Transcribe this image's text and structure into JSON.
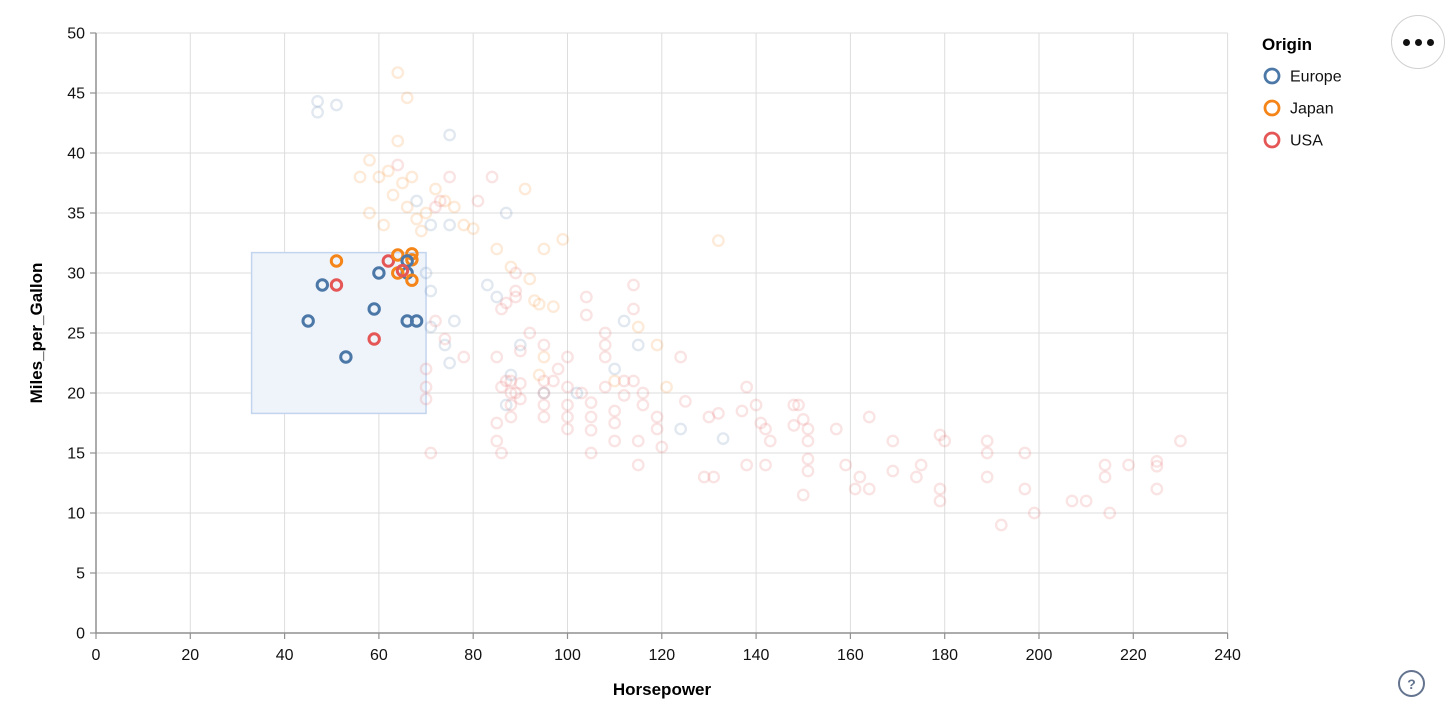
{
  "axes": {
    "x_title": "Horsepower",
    "y_title": "Miles_per_Gallon",
    "x_ticks": [
      0,
      20,
      40,
      60,
      80,
      100,
      120,
      140,
      160,
      180,
      200,
      220,
      240
    ],
    "y_ticks": [
      0,
      5,
      10,
      15,
      20,
      25,
      30,
      35,
      40,
      45,
      50
    ],
    "x_domain": [
      0,
      240
    ],
    "y_domain": [
      0,
      50
    ],
    "grid": true
  },
  "legend": {
    "title": "Origin",
    "position": "top-right",
    "entries": [
      {
        "label": "Europe",
        "color": "#4c78a8"
      },
      {
        "label": "Japan",
        "color": "#f58518"
      },
      {
        "label": "USA",
        "color": "#e45756"
      }
    ]
  },
  "controls": {
    "menu_icon": "ellipsis-menu",
    "help_label": "?"
  },
  "colors": {
    "Europe": "#4c78a8",
    "Japan": "#f58518",
    "USA": "#e45756",
    "grid": "#dddddd",
    "axis": "#919191",
    "brush_fill": "#eff4fb",
    "brush_stroke": "#c3d4ee",
    "unselected_opacity": 0.17
  },
  "chart_data": {
    "type": "scatter",
    "title": "",
    "x_field": "Horsepower",
    "y_field": "Miles_per_Gallon",
    "color_field": "Origin",
    "xlim": [
      0,
      240
    ],
    "ylim": [
      0,
      50
    ],
    "legend_position": "top-right",
    "brush_selection": {
      "x": [
        33,
        70
      ],
      "y": [
        18.3,
        31.7
      ]
    },
    "point_format": [
      "Horsepower",
      "Miles_per_Gallon",
      "Origin",
      "selected(1|0)"
    ],
    "points": [
      [
        51,
        31,
        "Japan",
        1
      ],
      [
        48,
        29,
        "Europe",
        1
      ],
      [
        51,
        29,
        "USA",
        1
      ],
      [
        45,
        26,
        "Europe",
        1
      ],
      [
        59,
        27,
        "Europe",
        1
      ],
      [
        53,
        23,
        "Europe",
        1
      ],
      [
        59,
        24.5,
        "USA",
        1
      ],
      [
        66,
        26,
        "Europe",
        1
      ],
      [
        68,
        26,
        "Europe",
        1
      ],
      [
        62,
        31,
        "USA",
        1
      ],
      [
        60,
        30,
        "Europe",
        1
      ],
      [
        64,
        31.5,
        "Japan",
        1
      ],
      [
        67,
        31.6,
        "Japan",
        1
      ],
      [
        67,
        31.1,
        "Japan",
        1
      ],
      [
        66,
        31,
        "Europe",
        1
      ],
      [
        66,
        30,
        "Europe",
        1
      ],
      [
        64,
        30,
        "Japan",
        1
      ],
      [
        65,
        30.2,
        "USA",
        1
      ],
      [
        67,
        29.4,
        "Japan",
        1
      ],
      [
        47,
        44.3,
        "Europe",
        0
      ],
      [
        47,
        43.4,
        "Europe",
        0
      ],
      [
        51,
        44,
        "Europe",
        0
      ],
      [
        75,
        41.5,
        "Europe",
        0
      ],
      [
        68,
        36,
        "Europe",
        0
      ],
      [
        71,
        34,
        "Europe",
        0
      ],
      [
        87,
        35,
        "Europe",
        0
      ],
      [
        75,
        34,
        "Europe",
        0
      ],
      [
        70,
        30,
        "Europe",
        0
      ],
      [
        71,
        28.5,
        "Europe",
        0
      ],
      [
        71,
        25.5,
        "Europe",
        0
      ],
      [
        83,
        29,
        "Europe",
        0
      ],
      [
        85,
        28,
        "Europe",
        0
      ],
      [
        76,
        26,
        "Europe",
        0
      ],
      [
        90,
        24,
        "Europe",
        0
      ],
      [
        112,
        26,
        "Europe",
        0
      ],
      [
        115,
        24,
        "Europe",
        0
      ],
      [
        110,
        22,
        "Europe",
        0
      ],
      [
        102,
        20,
        "Europe",
        0
      ],
      [
        95,
        20,
        "Europe",
        0
      ],
      [
        87,
        19,
        "Europe",
        0
      ],
      [
        88,
        21.5,
        "Europe",
        0
      ],
      [
        124,
        17,
        "Europe",
        0
      ],
      [
        133,
        16.2,
        "Europe",
        0
      ],
      [
        74,
        24,
        "Europe",
        0
      ],
      [
        75,
        22.5,
        "Europe",
        0
      ],
      [
        64,
        46.7,
        "Japan",
        0
      ],
      [
        66,
        44.6,
        "Japan",
        0
      ],
      [
        64,
        41,
        "Japan",
        0
      ],
      [
        58,
        39.4,
        "Japan",
        0
      ],
      [
        56,
        38,
        "Japan",
        0
      ],
      [
        60,
        38,
        "Japan",
        0
      ],
      [
        62,
        38.5,
        "Japan",
        0
      ],
      [
        65,
        37.5,
        "Japan",
        0
      ],
      [
        67,
        38,
        "Japan",
        0
      ],
      [
        63,
        36.5,
        "Japan",
        0
      ],
      [
        66,
        35.5,
        "Japan",
        0
      ],
      [
        68,
        34.5,
        "Japan",
        0
      ],
      [
        58,
        35,
        "Japan",
        0
      ],
      [
        61,
        34,
        "Japan",
        0
      ],
      [
        69,
        33.5,
        "Japan",
        0
      ],
      [
        70,
        35,
        "Japan",
        0
      ],
      [
        72,
        37,
        "Japan",
        0
      ],
      [
        74,
        36,
        "Japan",
        0
      ],
      [
        76,
        35.5,
        "Japan",
        0
      ],
      [
        78,
        34,
        "Japan",
        0
      ],
      [
        80,
        33.7,
        "Japan",
        0
      ],
      [
        91,
        37,
        "Japan",
        0
      ],
      [
        95,
        32,
        "Japan",
        0
      ],
      [
        99,
        32.8,
        "Japan",
        0
      ],
      [
        93,
        27.7,
        "Japan",
        0
      ],
      [
        94,
        27.4,
        "Japan",
        0
      ],
      [
        97,
        27.2,
        "Japan",
        0
      ],
      [
        92,
        29.5,
        "Japan",
        0
      ],
      [
        88,
        30.5,
        "Japan",
        0
      ],
      [
        85,
        32,
        "Japan",
        0
      ],
      [
        110,
        21,
        "Japan",
        0
      ],
      [
        115,
        25.5,
        "Japan",
        0
      ],
      [
        119,
        24,
        "Japan",
        0
      ],
      [
        121,
        20.5,
        "Japan",
        0
      ],
      [
        132,
        32.7,
        "Japan",
        0
      ],
      [
        95,
        23,
        "Japan",
        0
      ],
      [
        94,
        21.5,
        "Japan",
        0
      ],
      [
        64,
        39,
        "USA",
        0
      ],
      [
        73,
        36,
        "USA",
        0
      ],
      [
        75,
        38,
        "USA",
        0
      ],
      [
        81,
        36,
        "USA",
        0
      ],
      [
        84,
        38,
        "USA",
        0
      ],
      [
        72,
        35.5,
        "USA",
        0
      ],
      [
        70,
        22,
        "USA",
        0
      ],
      [
        70,
        20.5,
        "USA",
        0
      ],
      [
        70,
        19.5,
        "USA",
        0
      ],
      [
        72,
        26,
        "USA",
        0
      ],
      [
        74,
        24.5,
        "USA",
        0
      ],
      [
        78,
        23,
        "USA",
        0
      ],
      [
        71,
        15,
        "USA",
        0
      ],
      [
        89,
        30,
        "USA",
        0
      ],
      [
        89,
        28.5,
        "USA",
        0
      ],
      [
        89,
        28,
        "USA",
        0
      ],
      [
        86,
        27,
        "USA",
        0
      ],
      [
        87,
        27.5,
        "USA",
        0
      ],
      [
        104,
        28,
        "USA",
        0
      ],
      [
        104,
        26.5,
        "USA",
        0
      ],
      [
        114,
        29,
        "USA",
        0
      ],
      [
        114,
        27,
        "USA",
        0
      ],
      [
        114,
        21,
        "USA",
        0
      ],
      [
        108,
        25,
        "USA",
        0
      ],
      [
        108,
        24,
        "USA",
        0
      ],
      [
        108,
        23,
        "USA",
        0
      ],
      [
        124,
        23,
        "USA",
        0
      ],
      [
        85,
        23,
        "USA",
        0
      ],
      [
        90,
        23.5,
        "USA",
        0
      ],
      [
        92,
        25,
        "USA",
        0
      ],
      [
        95,
        24,
        "USA",
        0
      ],
      [
        98,
        22,
        "USA",
        0
      ],
      [
        100,
        23,
        "USA",
        0
      ],
      [
        85,
        17.5,
        "USA",
        0
      ],
      [
        85,
        16,
        "USA",
        0
      ],
      [
        86,
        15,
        "USA",
        0
      ],
      [
        88,
        18,
        "USA",
        0
      ],
      [
        88,
        19,
        "USA",
        0
      ],
      [
        88,
        20,
        "USA",
        0
      ],
      [
        88,
        21,
        "USA",
        0
      ],
      [
        90,
        19.5,
        "USA",
        0
      ],
      [
        86,
        20.5,
        "USA",
        0
      ],
      [
        87,
        21,
        "USA",
        0
      ],
      [
        89,
        20,
        "USA",
        0
      ],
      [
        90,
        20.8,
        "USA",
        0
      ],
      [
        95,
        18,
        "USA",
        0
      ],
      [
        95,
        19,
        "USA",
        0
      ],
      [
        95,
        20,
        "USA",
        0
      ],
      [
        95,
        21,
        "USA",
        0
      ],
      [
        97,
        21,
        "USA",
        0
      ],
      [
        100,
        18,
        "USA",
        0
      ],
      [
        100,
        19,
        "USA",
        0
      ],
      [
        100,
        17,
        "USA",
        0
      ],
      [
        100,
        20.5,
        "USA",
        0
      ],
      [
        103,
        20,
        "USA",
        0
      ],
      [
        105,
        18,
        "USA",
        0
      ],
      [
        105,
        16.9,
        "USA",
        0
      ],
      [
        105,
        15,
        "USA",
        0
      ],
      [
        105,
        19.2,
        "USA",
        0
      ],
      [
        108,
        20.5,
        "USA",
        0
      ],
      [
        110,
        18.5,
        "USA",
        0
      ],
      [
        110,
        17.5,
        "USA",
        0
      ],
      [
        110,
        16,
        "USA",
        0
      ],
      [
        112,
        19.8,
        "USA",
        0
      ],
      [
        112,
        21,
        "USA",
        0
      ],
      [
        115,
        16,
        "USA",
        0
      ],
      [
        115,
        14,
        "USA",
        0
      ],
      [
        116,
        20,
        "USA",
        0
      ],
      [
        116,
        19,
        "USA",
        0
      ],
      [
        119,
        18,
        "USA",
        0
      ],
      [
        119,
        17,
        "USA",
        0
      ],
      [
        120,
        15.5,
        "USA",
        0
      ],
      [
        125,
        19.3,
        "USA",
        0
      ],
      [
        129,
        13,
        "USA",
        0
      ],
      [
        131,
        13,
        "USA",
        0
      ],
      [
        130,
        18,
        "USA",
        0
      ],
      [
        132,
        18.3,
        "USA",
        0
      ],
      [
        137,
        18.5,
        "USA",
        0
      ],
      [
        138,
        20.5,
        "USA",
        0
      ],
      [
        140,
        19,
        "USA",
        0
      ],
      [
        141,
        17.5,
        "USA",
        0
      ],
      [
        142,
        17,
        "USA",
        0
      ],
      [
        143,
        16,
        "USA",
        0
      ],
      [
        138,
        14,
        "USA",
        0
      ],
      [
        142,
        14,
        "USA",
        0
      ],
      [
        148,
        19,
        "USA",
        0
      ],
      [
        148,
        17.3,
        "USA",
        0
      ],
      [
        149,
        19,
        "USA",
        0
      ],
      [
        150,
        17.8,
        "USA",
        0
      ],
      [
        151,
        17,
        "USA",
        0
      ],
      [
        151,
        16,
        "USA",
        0
      ],
      [
        151,
        14.5,
        "USA",
        0
      ],
      [
        151,
        13.5,
        "USA",
        0
      ],
      [
        150,
        11.5,
        "USA",
        0
      ],
      [
        157,
        17,
        "USA",
        0
      ],
      [
        159,
        14,
        "USA",
        0
      ],
      [
        161,
        12,
        "USA",
        0
      ],
      [
        162,
        13,
        "USA",
        0
      ],
      [
        164,
        12,
        "USA",
        0
      ],
      [
        164,
        18,
        "USA",
        0
      ],
      [
        169,
        16,
        "USA",
        0
      ],
      [
        169,
        13.5,
        "USA",
        0
      ],
      [
        175,
        14,
        "USA",
        0
      ],
      [
        174,
        13,
        "USA",
        0
      ],
      [
        179,
        16.5,
        "USA",
        0
      ],
      [
        180,
        16,
        "USA",
        0
      ],
      [
        179,
        12,
        "USA",
        0
      ],
      [
        179,
        11,
        "USA",
        0
      ],
      [
        189,
        16,
        "USA",
        0
      ],
      [
        189,
        15,
        "USA",
        0
      ],
      [
        189,
        13,
        "USA",
        0
      ],
      [
        192,
        9,
        "USA",
        0
      ],
      [
        197,
        15,
        "USA",
        0
      ],
      [
        197,
        12,
        "USA",
        0
      ],
      [
        199,
        10,
        "USA",
        0
      ],
      [
        207,
        11,
        "USA",
        0
      ],
      [
        210,
        11,
        "USA",
        0
      ],
      [
        214,
        14,
        "USA",
        0
      ],
      [
        214,
        13,
        "USA",
        0
      ],
      [
        215,
        10,
        "USA",
        0
      ],
      [
        219,
        14,
        "USA",
        0
      ],
      [
        225,
        14.3,
        "USA",
        0
      ],
      [
        225,
        13.9,
        "USA",
        0
      ],
      [
        225,
        12,
        "USA",
        0
      ],
      [
        230,
        16,
        "USA",
        0
      ]
    ]
  }
}
